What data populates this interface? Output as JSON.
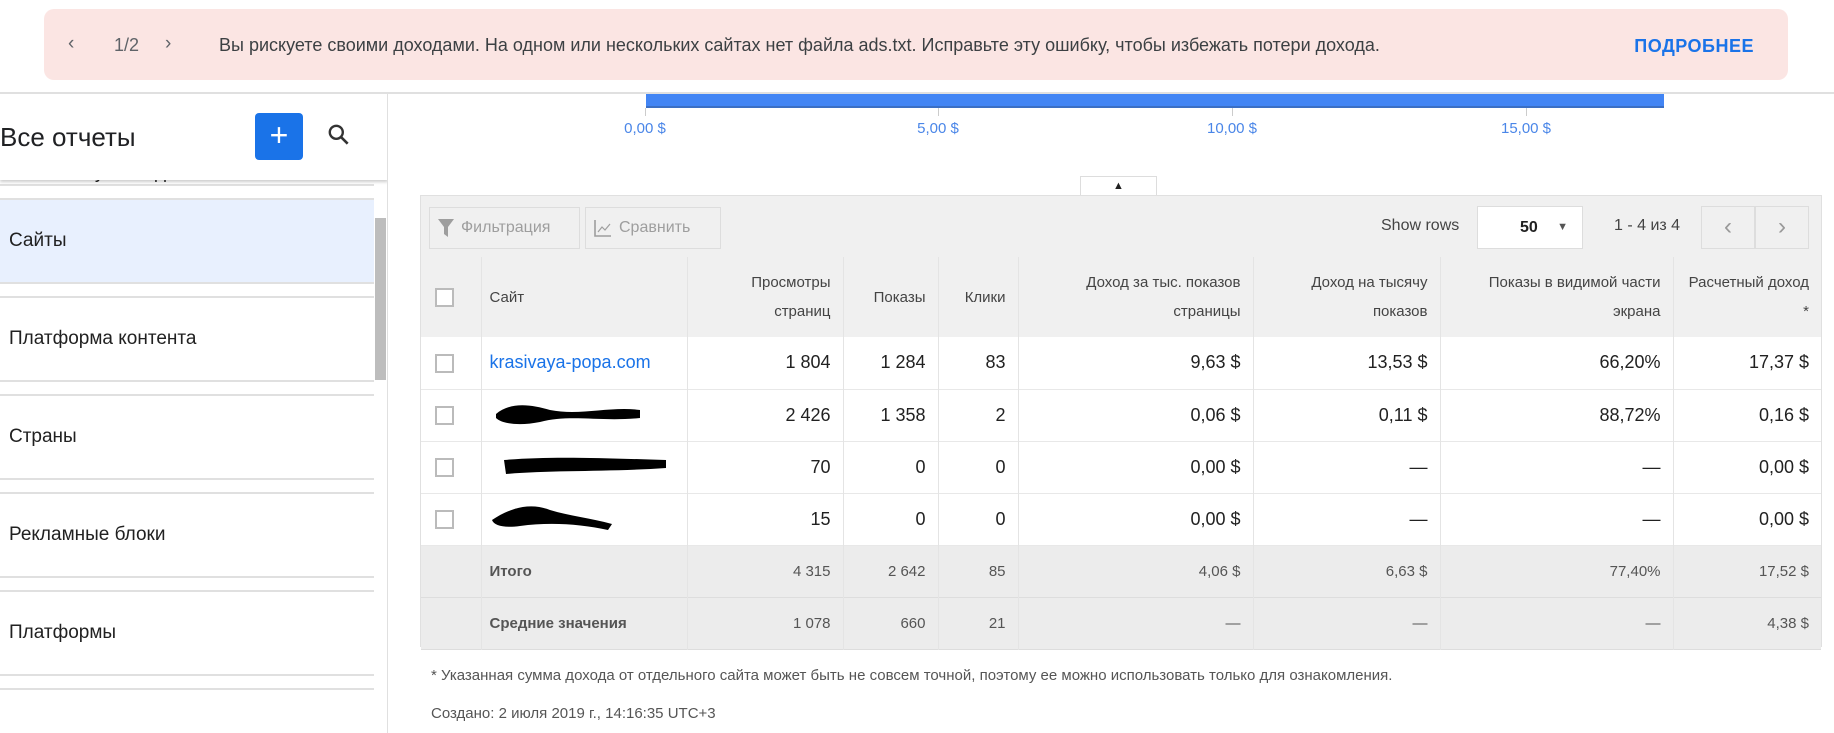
{
  "banner": {
    "counter": "1/2",
    "message": "Вы рискуете своими доходами. На одном или нескольких сайтах нет файла ads.txt. Исправьте эту ошибку, чтобы избежать потери дохода.",
    "more": "ПОДРОБНЕЕ",
    "prev_icon": "chevron-left-icon",
    "next_icon": "chevron-right-icon"
  },
  "sidebar": {
    "title": "Все отчеты",
    "add": "+",
    "items": [
      {
        "label": "Весь аккаунт по дням"
      },
      {
        "label": "Сайты",
        "active": true
      },
      {
        "label": "Платформа контента"
      },
      {
        "label": "Страны"
      },
      {
        "label": "Рекламные блоки"
      },
      {
        "label": "Платформы"
      }
    ]
  },
  "chart": {
    "value": 17.37,
    "axis": [
      "0,00 $",
      "5,00 $",
      "10,00 $",
      "15,00 $"
    ],
    "bar_color": "#4285f4"
  },
  "toolbar": {
    "filter": "Фильтрация",
    "compare": "Сравнить",
    "show_rows": "Show rows",
    "rows": "50",
    "range": "1 - 4 из 4"
  },
  "table": {
    "headers": [
      "Сайт",
      "Просмотры страниц",
      "Показы",
      "Клики",
      "Доход за тыс. показов страницы",
      "Доход на тысячу показов",
      "Показы в видимой части экрана",
      "Расчетный доход *"
    ],
    "rows": [
      {
        "site": "krasivaya-popa.com",
        "cells": [
          "1 804",
          "1 284",
          "83",
          "9,63 $",
          "13,53 $",
          "66,20%",
          "17,37 $"
        ]
      },
      {
        "site": "",
        "cells": [
          "2 426",
          "1 358",
          "2",
          "0,06 $",
          "0,11 $",
          "88,72%",
          "0,16 $"
        ]
      },
      {
        "site": "",
        "cells": [
          "70",
          "0",
          "0",
          "0,00 $",
          "—",
          "—",
          "0,00 $"
        ]
      },
      {
        "site": "",
        "cells": [
          "15",
          "0",
          "0",
          "0,00 $",
          "—",
          "—",
          "0,00 $"
        ]
      }
    ],
    "totals": {
      "label": "Итого",
      "cells": [
        "4 315",
        "2 642",
        "85",
        "4,06 $",
        "6,63 $",
        "77,40%",
        "17,52 $"
      ]
    },
    "averages": {
      "label": "Средние значения",
      "cells": [
        "1 078",
        "660",
        "21",
        "—",
        "—",
        "—",
        "4,38 $"
      ]
    }
  },
  "footnote": "* Указанная сумма дохода от отдельного сайта может быть не совсем точной, поэтому ее можно использовать только для ознакомления.",
  "created": "Создано: 2 июля 2019 г., 14:16:35 UTC+3"
}
